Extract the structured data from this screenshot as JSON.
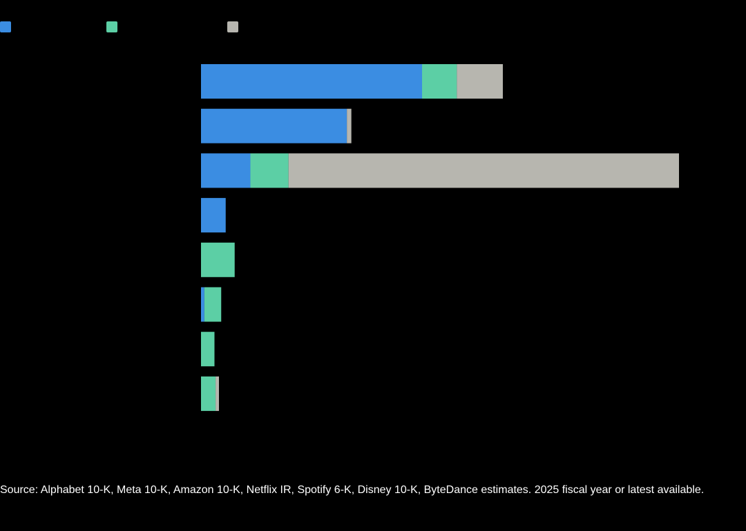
{
  "chart_data": {
    "type": "bar",
    "orientation": "horizontal",
    "stacked": true,
    "categories": [
      "",
      "",
      "",
      "",
      "",
      "",
      "",
      ""
    ],
    "series": [
      {
        "color": "#3b8de2",
        "values": [
          98.5,
          65,
          22,
          11,
          0,
          1.5,
          0,
          0
        ]
      },
      {
        "color": "#5ccfa5",
        "values": [
          15.5,
          0,
          17,
          0,
          15,
          7.5,
          6,
          6.5
        ]
      },
      {
        "color": "#b7b6af",
        "values": [
          20.5,
          2,
          174,
          0,
          0,
          0,
          0,
          1.5
        ]
      }
    ],
    "xlim": [
      0,
      213
    ],
    "grid": false,
    "legend_position": "top-left",
    "title": "",
    "xlabel": "",
    "ylabel": ""
  },
  "source_note": "Source: Alphabet 10-K, Meta 10-K, Amazon 10-K, Netflix IR, Spotify 6-K, Disney 10-K, ByteDance estimates. 2025 fiscal year or latest available."
}
